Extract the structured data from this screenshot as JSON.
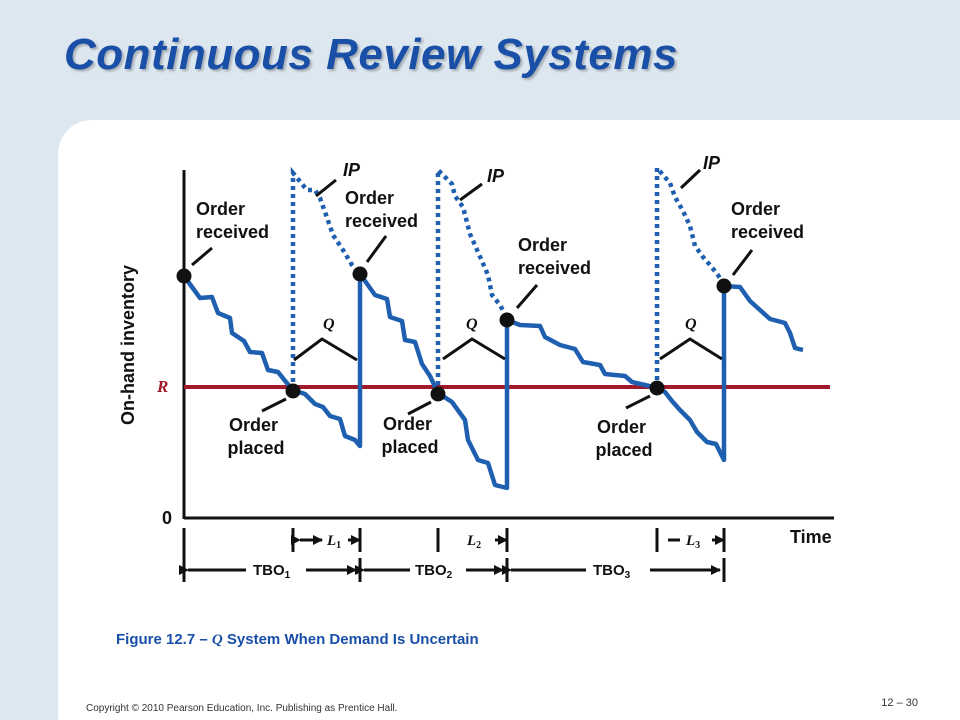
{
  "slide": {
    "title": "Continuous Review Systems",
    "caption_prefix": "Figure 12.7 –",
    "caption_q": "Q",
    "caption_rest": "System When Demand Is Uncertain",
    "copyright": "Copyright © 2010 Pearson Education, Inc. Publishing as Prentice Hall.",
    "page_number": "12 – 30"
  },
  "diagram": {
    "y_axis_label": "On-hand inventory",
    "x_axis_label": "Time",
    "origin_label": "0",
    "reorder_point_label": "R",
    "ip_label": "IP",
    "q_label": "Q",
    "order_received_line1": "Order",
    "order_received_line2": "received",
    "order_placed_line1": "Order",
    "order_placed_line2": "placed",
    "lead_time_base": "L",
    "lead_time_subs": [
      "1",
      "2",
      "3"
    ],
    "tbo_base": "TBO",
    "tbo_subs": [
      "1",
      "2",
      "3"
    ],
    "colors": {
      "inventory": "#1f5fb0",
      "reorder_line": "#a3192c",
      "title": "#1a4fa8",
      "points": "#111111"
    }
  }
}
